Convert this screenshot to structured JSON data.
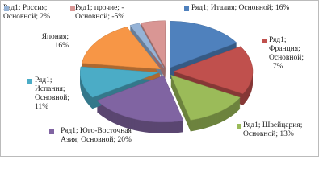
{
  "chart_data": {
    "type": "pie",
    "values": [
      16,
      17,
      13,
      20,
      11,
      16,
      2,
      -5
    ],
    "value_labels": [
      "Ряд1; Италия; Основной; 16%",
      "Ряд1; Франция; Основной; 17%",
      "Ряд1; Швейцария; Основной; 13%",
      "Ряд1; Юго-Восточная Азия; Основной; 20%",
      "Ряд1; Испания; Основной; 11%",
      "Япония; 16%",
      "Ряд1; Россия; Основной; 2%",
      "Ряд1; прочие; - Основной; -5%"
    ],
    "colors": [
      "#4f81bd",
      "#c0504d",
      "#9bbb59",
      "#8064a2",
      "#4bacc6",
      "#f79646",
      "#95b3d7",
      "#d99694"
    ]
  }
}
